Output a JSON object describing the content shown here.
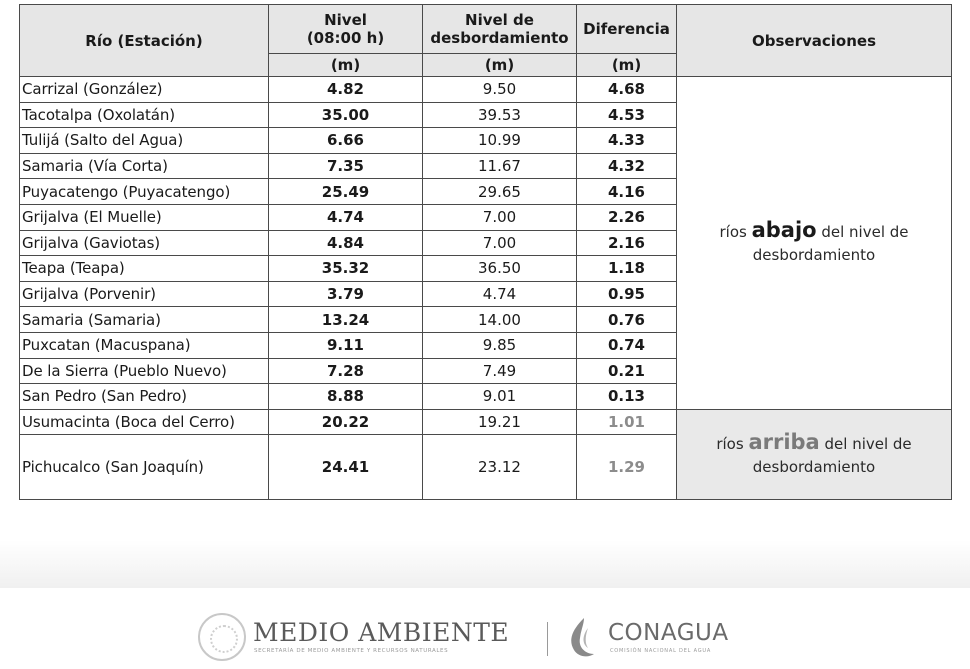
{
  "table": {
    "headers": {
      "river": "Río (Estación)",
      "level": "Nivel\n(08:00 h)",
      "overflow": "Nivel de desbordamiento",
      "difference": "Diferencia",
      "observations": "Observaciones",
      "unit": "(m)"
    },
    "rows": [
      {
        "river": "Carrizal (González)",
        "level": "4.82",
        "overflow": "9.50",
        "difference": "4.68"
      },
      {
        "river": "Tacotalpa (Oxolatán)",
        "level": "35.00",
        "overflow": "39.53",
        "difference": "4.53"
      },
      {
        "river": "Tulijá (Salto del Agua)",
        "level": "6.66",
        "overflow": "10.99",
        "difference": "4.33"
      },
      {
        "river": "Samaria (Vía Corta)",
        "level": "7.35",
        "overflow": "11.67",
        "difference": "4.32"
      },
      {
        "river": "Puyacatengo (Puyacatengo)",
        "level": "25.49",
        "overflow": "29.65",
        "difference": "4.16"
      },
      {
        "river": "Grijalva (El Muelle)",
        "level": "4.74",
        "overflow": "7.00",
        "difference": "2.26"
      },
      {
        "river": "Grijalva (Gaviotas)",
        "level": "4.84",
        "overflow": "7.00",
        "difference": "2.16"
      },
      {
        "river": "Teapa (Teapa)",
        "level": "35.32",
        "overflow": "36.50",
        "difference": "1.18"
      },
      {
        "river": "Grijalva (Porvenir)",
        "level": "3.79",
        "overflow": "4.74",
        "difference": "0.95"
      },
      {
        "river": "Samaria (Samaria)",
        "level": "13.24",
        "overflow": "14.00",
        "difference": "0.76"
      },
      {
        "river": "Puxcatan (Macuspana)",
        "level": "9.11",
        "overflow": "9.85",
        "difference": "0.74"
      },
      {
        "river": "De la Sierra (Pueblo Nuevo)",
        "level": "7.28",
        "overflow": "7.49",
        "difference": "0.21"
      },
      {
        "river": "San Pedro (San Pedro)",
        "level": "8.88",
        "overflow": "9.01",
        "difference": "0.13"
      },
      {
        "river": "Usumacinta (Boca del Cerro)",
        "level": "20.22",
        "overflow": "19.21",
        "difference": "1.01"
      },
      {
        "river": "Pichucalco (San Joaquín)",
        "level": "24.41",
        "overflow": "23.12",
        "difference": "1.29"
      }
    ],
    "obs_below": {
      "pre": "ríos ",
      "em": "abajo",
      "post": " del nivel de desbordamiento"
    },
    "obs_above": {
      "pre": "ríos ",
      "em": "arriba",
      "post": " del nivel de desbordamiento"
    }
  },
  "footer": {
    "medio_ambiente": "MEDIO AMBIENTE",
    "medio_ambiente_sub": "SECRETARÍA DE MEDIO AMBIENTE Y RECURSOS NATURALES",
    "conagua": "CONAGUA",
    "conagua_sub": "COMISIÓN NACIONAL DEL AGUA"
  },
  "colors": {
    "header_bg": "#e6e6e6",
    "above_bg": "#e9e9e9",
    "above_diff_text": "#8c8c8c"
  }
}
